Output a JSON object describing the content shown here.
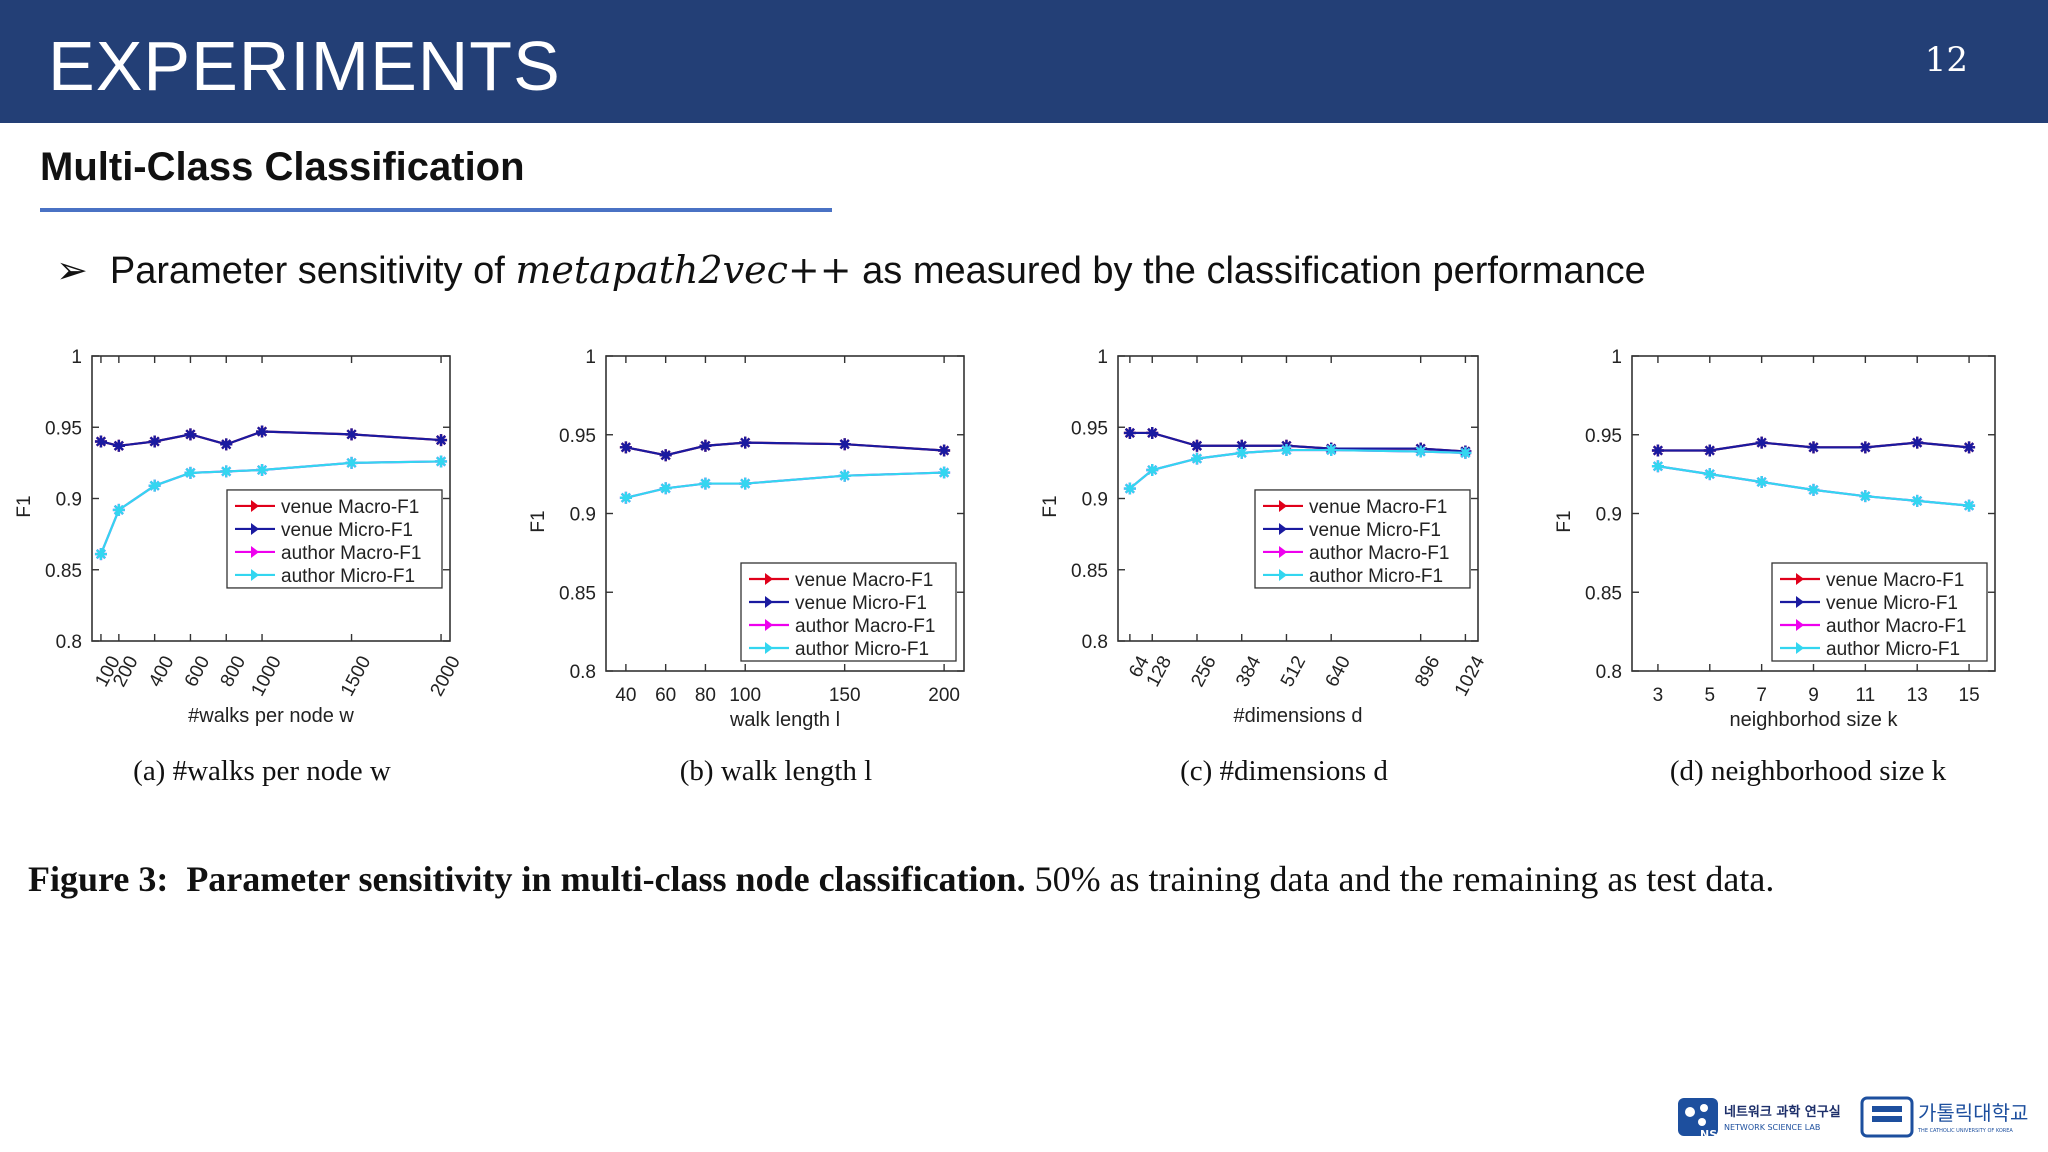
{
  "header": {
    "title": "EXPERIMENTS",
    "page_number": "12",
    "color": "#233f76"
  },
  "section": {
    "title": "Multi-Class Classification"
  },
  "bullet": {
    "marker": "➢",
    "text_before": "Parameter sensitivity of ",
    "math": "metapath2vec++",
    "text_after": " as measured by the classification performance"
  },
  "legend_entries": [
    "venue Macro-F1",
    "venue Micro-F1",
    "author Macro-F1",
    "author Micro-F1"
  ],
  "series_colors": {
    "venue Macro-F1": "#e0001a",
    "venue Micro-F1": "#1a1aa0",
    "author Macro-F1": "#ee00ee",
    "author Micro-F1": "#33d6f0"
  },
  "figure_caption": {
    "label": "Figure 3:",
    "bold": "Parameter sensitivity in multi-class node classification.",
    "rest": " 50% as training data and the remaining as test data."
  },
  "logos": {
    "lab_kr": "네트워크 과학 연구실",
    "lab_en": "NETWORK SCIENCE LAB",
    "lab_mark": "NS",
    "univ_kr": "가톨릭대학교",
    "univ_en": "THE CATHOLIC UNIVERSITY OF KOREA"
  },
  "chart_data": [
    {
      "type": "line",
      "caption": "(a) #walks per node w",
      "xlabel": "#walks per node w",
      "ylabel": "F1",
      "x": [
        100,
        200,
        400,
        600,
        800,
        1000,
        1500,
        2000
      ],
      "x_ticks": [
        100,
        200,
        400,
        600,
        800,
        1000,
        1500,
        2000
      ],
      "x_tick_rotated": true,
      "xlim": [
        50,
        2050
      ],
      "ylim": [
        0.8,
        1
      ],
      "y_ticks": [
        0.8,
        0.85,
        0.9,
        0.95,
        1
      ],
      "legend_position": "center-right",
      "series": [
        {
          "name": "venue Macro-F1",
          "values": [
            0.94,
            0.937,
            0.94,
            0.945,
            0.938,
            0.947,
            0.945,
            0.941
          ]
        },
        {
          "name": "venue Micro-F1",
          "values": [
            0.94,
            0.937,
            0.94,
            0.945,
            0.938,
            0.947,
            0.945,
            0.941
          ]
        },
        {
          "name": "author Macro-F1",
          "values": [
            0.861,
            0.892,
            0.909,
            0.918,
            0.919,
            0.92,
            0.925,
            0.926
          ]
        },
        {
          "name": "author Micro-F1",
          "values": [
            0.861,
            0.892,
            0.909,
            0.918,
            0.919,
            0.92,
            0.925,
            0.926
          ]
        }
      ]
    },
    {
      "type": "line",
      "caption": "(b) walk length l",
      "xlabel": "walk length l",
      "ylabel": "F1",
      "x": [
        40,
        60,
        80,
        100,
        150,
        200
      ],
      "x_ticks": [
        40,
        60,
        80,
        100,
        150,
        200
      ],
      "x_tick_rotated": false,
      "xlim": [
        30,
        210
      ],
      "ylim": [
        0.8,
        1
      ],
      "y_ticks": [
        0.8,
        0.85,
        0.9,
        0.95,
        1
      ],
      "legend_position": "lower-right",
      "series": [
        {
          "name": "venue Macro-F1",
          "values": [
            0.942,
            0.937,
            0.943,
            0.945,
            0.944,
            0.94
          ]
        },
        {
          "name": "venue Micro-F1",
          "values": [
            0.942,
            0.937,
            0.943,
            0.945,
            0.944,
            0.94
          ]
        },
        {
          "name": "author Macro-F1",
          "values": [
            0.91,
            0.916,
            0.919,
            0.919,
            0.924,
            0.926
          ]
        },
        {
          "name": "author Micro-F1",
          "values": [
            0.91,
            0.916,
            0.919,
            0.919,
            0.924,
            0.926
          ]
        }
      ]
    },
    {
      "type": "line",
      "caption": "(c) #dimensions d",
      "xlabel": "#dimensions d",
      "ylabel": "F1",
      "x": [
        64,
        128,
        256,
        384,
        512,
        640,
        896,
        1024
      ],
      "x_ticks": [
        64,
        128,
        256,
        384,
        512,
        640,
        896,
        1024
      ],
      "x_tick_rotated": true,
      "xlim": [
        30,
        1060
      ],
      "ylim": [
        0.8,
        1
      ],
      "y_ticks": [
        0.8,
        0.85,
        0.9,
        0.95,
        1
      ],
      "legend_position": "center-right",
      "series": [
        {
          "name": "venue Macro-F1",
          "values": [
            0.946,
            0.946,
            0.937,
            0.937,
            0.937,
            0.935,
            0.935,
            0.933
          ]
        },
        {
          "name": "venue Micro-F1",
          "values": [
            0.946,
            0.946,
            0.937,
            0.937,
            0.937,
            0.935,
            0.935,
            0.933
          ]
        },
        {
          "name": "author Macro-F1",
          "values": [
            0.907,
            0.92,
            0.928,
            0.932,
            0.934,
            0.934,
            0.933,
            0.932
          ]
        },
        {
          "name": "author Micro-F1",
          "values": [
            0.907,
            0.92,
            0.928,
            0.932,
            0.934,
            0.934,
            0.933,
            0.932
          ]
        }
      ]
    },
    {
      "type": "line",
      "caption": "(d) neighborhood size k",
      "xlabel": "neighborhod size k",
      "ylabel": "F1",
      "x": [
        3,
        5,
        7,
        9,
        11,
        13,
        15
      ],
      "x_ticks": [
        3,
        5,
        7,
        9,
        11,
        13,
        15
      ],
      "x_tick_rotated": false,
      "xlim": [
        2,
        16
      ],
      "ylim": [
        0.8,
        1
      ],
      "y_ticks": [
        0.8,
        0.85,
        0.9,
        0.95,
        1
      ],
      "legend_position": "lower-right",
      "series": [
        {
          "name": "venue Macro-F1",
          "values": [
            0.94,
            0.94,
            0.945,
            0.942,
            0.942,
            0.945,
            0.942
          ]
        },
        {
          "name": "venue Micro-F1",
          "values": [
            0.94,
            0.94,
            0.945,
            0.942,
            0.942,
            0.945,
            0.942
          ]
        },
        {
          "name": "author Macro-F1",
          "values": [
            0.93,
            0.925,
            0.92,
            0.915,
            0.911,
            0.908,
            0.905
          ]
        },
        {
          "name": "author Micro-F1",
          "values": [
            0.93,
            0.925,
            0.92,
            0.915,
            0.911,
            0.908,
            0.905
          ]
        }
      ]
    }
  ]
}
